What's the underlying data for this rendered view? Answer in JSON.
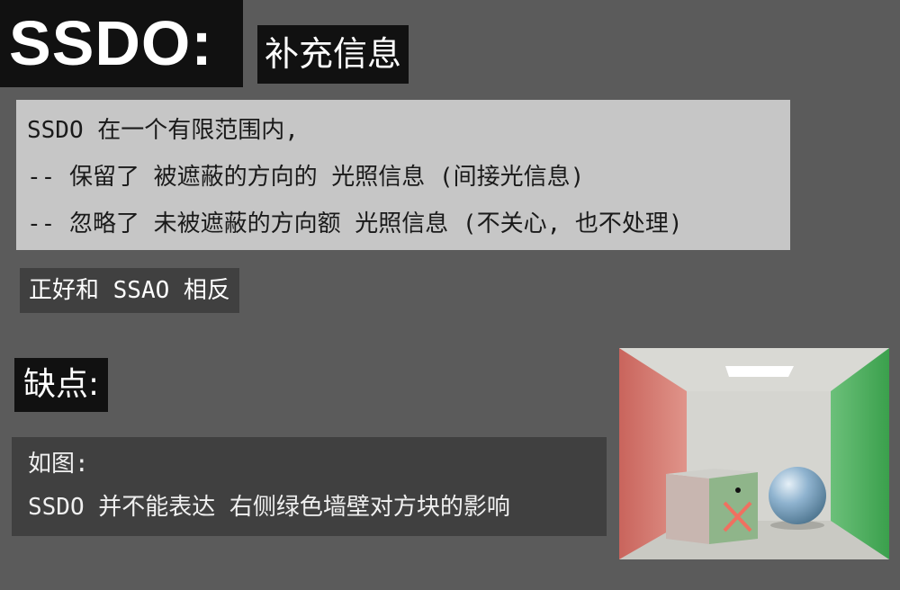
{
  "header": {
    "title": "SSDO:",
    "subtitle": "补充信息"
  },
  "info": {
    "lines": [
      "SSDO 在一个有限范围内,",
      "-- 保留了 被遮蔽的方向的 光照信息 (间接光信息)",
      "-- 忽略了 未被遮蔽的方向额 光照信息 (不关心, 也不处理)"
    ]
  },
  "note": "正好和 SSAO 相反",
  "cons": {
    "title": "缺点:",
    "lines": [
      "如图:",
      "SSDO 并不能表达 右侧绿色墙壁对方块的影响"
    ]
  },
  "figure": {
    "colors": {
      "left_wall": "#d77a72",
      "right_wall": "#4fb060",
      "back_wall": "#d5d5d0",
      "ceiling": "#cfcfca",
      "floor": "#c8c8c2",
      "sphere": "#8fb3cf",
      "cross": "#f07060"
    }
  }
}
